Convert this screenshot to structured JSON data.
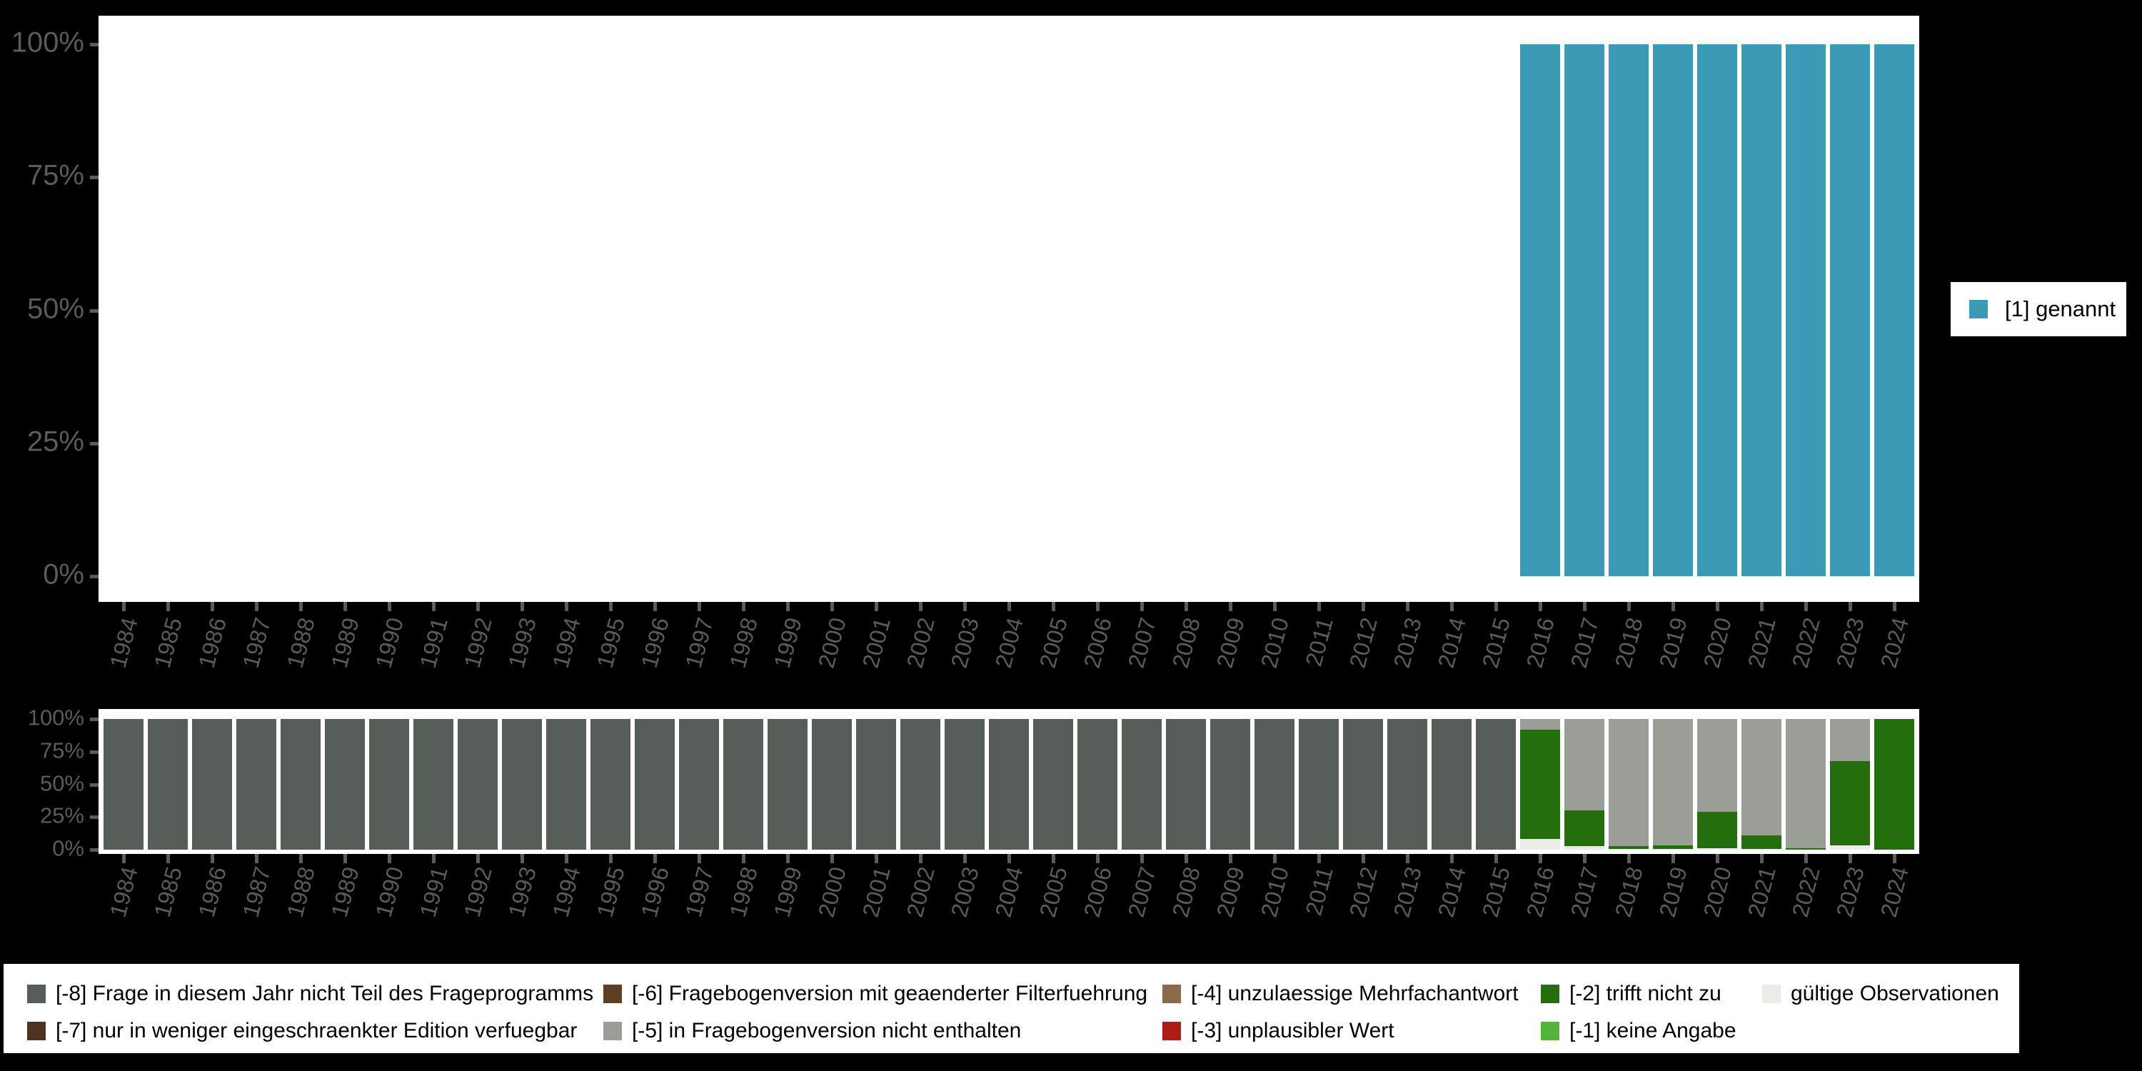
{
  "background_color": "#000000",
  "axis_text_color": "#5b5b5b",
  "panel_color": "#ffffff",
  "legend_text_color": "#000000",
  "chart_data": [
    {
      "type": "bar",
      "stacked": true,
      "title": "",
      "xlabel": "",
      "ylabel": "",
      "ylim": [
        0,
        100
      ],
      "grid": false,
      "ytick_labels": [
        "100%",
        "75%",
        "50%",
        "25%",
        "0%"
      ],
      "ytick_values": [
        100,
        75,
        50,
        25,
        0
      ],
      "categories": [
        1984,
        1985,
        1986,
        1987,
        1988,
        1989,
        1990,
        1991,
        1992,
        1993,
        1994,
        1995,
        1996,
        1997,
        1998,
        1999,
        2000,
        2001,
        2002,
        2003,
        2004,
        2005,
        2006,
        2007,
        2008,
        2009,
        2010,
        2011,
        2012,
        2013,
        2014,
        2015,
        2016,
        2017,
        2018,
        2019,
        2020,
        2021,
        2022,
        2023,
        2024
      ],
      "legend_position": "right",
      "series": [
        {
          "name": "[1] genannt",
          "color": "#3b9ab5",
          "values": [
            0,
            0,
            0,
            0,
            0,
            0,
            0,
            0,
            0,
            0,
            0,
            0,
            0,
            0,
            0,
            0,
            0,
            0,
            0,
            0,
            0,
            0,
            0,
            0,
            0,
            0,
            0,
            0,
            0,
            0,
            0,
            0,
            100,
            100,
            100,
            100,
            100,
            100,
            100,
            100,
            100
          ]
        }
      ]
    },
    {
      "type": "bar",
      "stacked": true,
      "title": "",
      "xlabel": "",
      "ylabel": "",
      "ylim": [
        0,
        100
      ],
      "grid": false,
      "ytick_labels": [
        "100%",
        "75%",
        "50%",
        "25%",
        "0%"
      ],
      "ytick_values": [
        100,
        75,
        50,
        25,
        0
      ],
      "categories": [
        1984,
        1985,
        1986,
        1987,
        1988,
        1989,
        1990,
        1991,
        1992,
        1993,
        1994,
        1995,
        1996,
        1997,
        1998,
        1999,
        2000,
        2001,
        2002,
        2003,
        2004,
        2005,
        2006,
        2007,
        2008,
        2009,
        2010,
        2011,
        2012,
        2013,
        2014,
        2015,
        2016,
        2017,
        2018,
        2019,
        2020,
        2021,
        2022,
        2023,
        2024
      ],
      "stack_order_bottom_to_top": [
        "valid",
        "-2",
        "-5",
        "-8"
      ],
      "series": [
        {
          "code": "valid",
          "name": "gültige Observationen",
          "color": "#e9ede5",
          "values": [
            0,
            0,
            0,
            0,
            0,
            0,
            0,
            0,
            0,
            0,
            0,
            0,
            0,
            0,
            0,
            0,
            0,
            0,
            0,
            0,
            0,
            0,
            0,
            0,
            0,
            0,
            0,
            0,
            0,
            0,
            0,
            0,
            8,
            3,
            0.5,
            0.5,
            1,
            0.5,
            0,
            3.5,
            0
          ]
        },
        {
          "code": "-2",
          "name": "[-2] trifft nicht zu",
          "color": "#246e0d",
          "values": [
            0,
            0,
            0,
            0,
            0,
            0,
            0,
            0,
            0,
            0,
            0,
            0,
            0,
            0,
            0,
            0,
            0,
            0,
            0,
            0,
            0,
            0,
            0,
            0,
            0,
            0,
            0,
            0,
            0,
            0,
            0,
            0,
            84,
            27,
            2,
            3,
            28,
            10.5,
            1,
            64,
            100
          ]
        },
        {
          "code": "-5",
          "name": "[-5] in Fragebogenversion nicht enthalten",
          "color": "#9a9e97",
          "values": [
            0,
            0,
            0,
            0,
            0,
            0,
            0,
            0,
            0,
            0,
            0,
            0,
            0,
            0,
            0,
            0,
            0,
            0,
            0,
            0,
            0,
            0,
            0,
            0,
            0,
            0,
            0,
            0,
            0,
            0,
            0,
            0,
            8,
            70,
            97.5,
            96.5,
            71,
            89,
            99,
            32.5,
            0
          ]
        },
        {
          "code": "-8",
          "name": "[-8] Frage in diesem Jahr nicht Teil des Frageprogramms",
          "color": "#575e57",
          "values": [
            100,
            100,
            100,
            100,
            100,
            100,
            100,
            100,
            100,
            100,
            100,
            100,
            100,
            100,
            100,
            100,
            100,
            100,
            100,
            100,
            100,
            100,
            100,
            100,
            100,
            100,
            100,
            100,
            100,
            100,
            100,
            100,
            0,
            0,
            0,
            0,
            0,
            0,
            0,
            0,
            0
          ]
        }
      ]
    }
  ],
  "top_legend": {
    "items": [
      {
        "label": "[1] genannt",
        "color": "#3b9ab5"
      }
    ]
  },
  "bottom_legend": {
    "items": [
      {
        "label": "[-8] Frage in diesem Jahr nicht Teil des Frageprogramms",
        "color": "#575e57",
        "col": 0,
        "row": 0
      },
      {
        "label": "[-7] nur in weniger eingeschraenkter Edition verfuegbar",
        "color": "#4e3420",
        "col": 0,
        "row": 1
      },
      {
        "label": "[-6] Fragebogenversion mit geaenderter Filterfuehrung",
        "color": "#5e3f22",
        "col": 1,
        "row": 0
      },
      {
        "label": "[-5] in Fragebogenversion nicht enthalten",
        "color": "#9a9e97",
        "col": 1,
        "row": 1
      },
      {
        "label": "[-4] unzulaessige Mehrfachantwort",
        "color": "#8a6a48",
        "col": 2,
        "row": 0
      },
      {
        "label": "[-3] unplausibler Wert",
        "color": "#ad1b17",
        "col": 2,
        "row": 1
      },
      {
        "label": "[-2] trifft nicht zu",
        "color": "#246e0d",
        "col": 3,
        "row": 0
      },
      {
        "label": "[-1] keine Angabe",
        "color": "#55b23a",
        "col": 3,
        "row": 1
      },
      {
        "label": "gültige Observationen",
        "color": "#e9ede5",
        "col": 4,
        "row": 0
      }
    ]
  }
}
